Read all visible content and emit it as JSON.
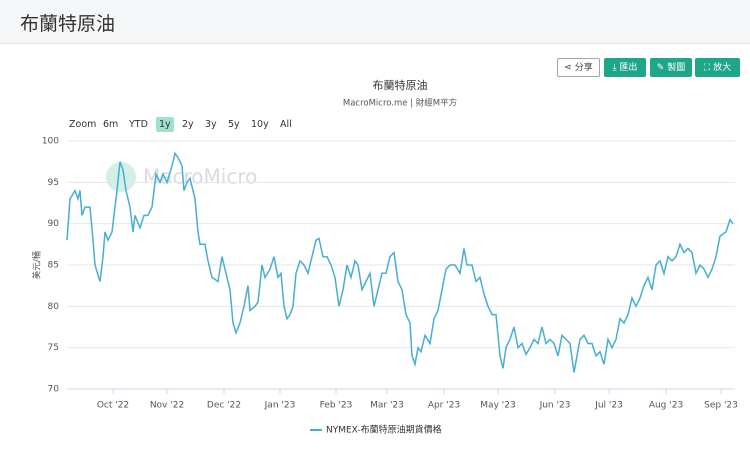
{
  "header": {
    "title": "布蘭特原油"
  },
  "toolbar": [
    "分享",
    "匯出",
    "製圖",
    "放大"
  ],
  "chart_data": {
    "type": "line",
    "title": "布蘭特原油",
    "subtitle": "MacroMicro.me | 財經M平方",
    "zoom": {
      "label": "Zoom",
      "options": [
        "6m",
        "YTD",
        "1y",
        "2y",
        "3y",
        "5y",
        "10y",
        "All"
      ],
      "selected": "1y"
    },
    "watermark": "MacroMicro",
    "y_label": "美元/桶",
    "x": [
      0,
      3,
      8,
      11,
      13,
      15,
      18,
      23,
      26,
      28,
      33,
      36,
      38,
      41,
      45,
      50,
      53,
      56,
      59,
      63,
      66,
      68,
      73,
      77,
      81,
      85,
      89,
      93,
      96,
      100,
      105,
      108,
      111,
      115,
      117,
      120,
      123,
      128,
      131,
      133,
      138,
      141,
      145,
      151,
      155,
      159,
      163,
      166,
      169,
      173,
      177,
      181,
      183,
      188,
      191,
      195,
      198,
      203,
      207,
      211,
      214,
      217,
      220,
      223,
      226,
      229,
      233,
      237,
      241,
      245,
      249,
      252,
      256,
      260,
      264,
      268,
      272,
      276,
      280,
      284,
      288,
      291,
      295,
      299,
      303,
      307,
      311,
      315,
      319,
      323,
      327,
      331,
      335,
      339,
      343,
      345,
      348,
      351,
      354,
      358,
      363,
      367,
      371,
      375,
      379,
      383,
      388,
      393,
      397,
      400,
      405,
      409,
      413,
      417,
      421,
      425,
      429,
      433,
      436,
      439,
      443,
      447,
      451,
      455,
      459,
      463,
      467,
      471,
      475,
      479,
      483,
      487,
      491,
      495,
      499,
      503,
      507,
      510,
      513,
      517,
      521,
      525,
      529,
      533,
      537,
      541,
      545,
      549,
      553,
      557,
      561,
      565,
      569,
      573,
      577,
      581,
      585,
      589,
      593,
      597,
      601,
      605,
      609,
      613,
      617,
      621,
      625,
      629,
      633,
      637,
      641,
      645,
      649,
      653,
      659,
      663,
      666
    ],
    "series": [
      {
        "name": "NYMEX-布蘭特原油期貨價格",
        "color": "#47aed2",
        "values": [
          88,
          93,
          94,
          93,
          94,
          91,
          92,
          92,
          88,
          85,
          83,
          86,
          89,
          88,
          89,
          94,
          97.5,
          96.5,
          94,
          92,
          89,
          91,
          89.5,
          91,
          91,
          92,
          96,
          95,
          96,
          95,
          97,
          98.5,
          98,
          97,
          94,
          95,
          95.5,
          93,
          89,
          87.5,
          87.5,
          85.5,
          83.5,
          83,
          86,
          84,
          82,
          78,
          76.8,
          78,
          80,
          82.5,
          79.5,
          80,
          80.5,
          85,
          83.5,
          84.5,
          86,
          83.5,
          84,
          80,
          78.5,
          79,
          80,
          84,
          85.5,
          85,
          84,
          86,
          88,
          88.2,
          86,
          86,
          85,
          83.5,
          80,
          82,
          85,
          83.5,
          85.5,
          85,
          82,
          83,
          84,
          80,
          82,
          84,
          84,
          86,
          86.5,
          83,
          82,
          79,
          78,
          74,
          73,
          75,
          74.5,
          76.5,
          75.5,
          78.5,
          79.5,
          82,
          84.5,
          85,
          85,
          84,
          87,
          85,
          85,
          83,
          83.5,
          81.5,
          80,
          79,
          79,
          74,
          72.5,
          75,
          76,
          77.5,
          75,
          75.5,
          74.2,
          75,
          76,
          75.5,
          77.5,
          75.5,
          76,
          75.5,
          74,
          76.5,
          76,
          75.5,
          72,
          74,
          76,
          76.5,
          75.5,
          75.5,
          74,
          74.5,
          73,
          76,
          75,
          76,
          78.5,
          78,
          79,
          81,
          80,
          81,
          82.5,
          83.5,
          82,
          85,
          85.5,
          84,
          86,
          85.5,
          86,
          87.5,
          86.5,
          87,
          86.5,
          84,
          85,
          84.5,
          83.5,
          84.5,
          86,
          88.5,
          89,
          90.5,
          90
        ]
      }
    ],
    "xlim": [
      0,
      668
    ],
    "xticks": [
      {
        "value": 46,
        "label": "Oct '22"
      },
      {
        "value": 100,
        "label": "Nov '22"
      },
      {
        "value": 157,
        "label": "Dec '22"
      },
      {
        "value": 213,
        "label": "Jan '23"
      },
      {
        "value": 269,
        "label": "Feb '23"
      },
      {
        "value": 320,
        "label": "Mar '23"
      },
      {
        "value": 377,
        "label": "Apr '23"
      },
      {
        "value": 431,
        "label": "May '23"
      },
      {
        "value": 488,
        "label": "Jun '23"
      },
      {
        "value": 542,
        "label": "Jul '23"
      },
      {
        "value": 599,
        "label": "Aug '23"
      },
      {
        "value": 654,
        "label": "Sep '23"
      }
    ],
    "ylim": [
      70,
      100
    ],
    "yticks": [
      70,
      75,
      80,
      85,
      90,
      95,
      100
    ],
    "grid": true
  }
}
